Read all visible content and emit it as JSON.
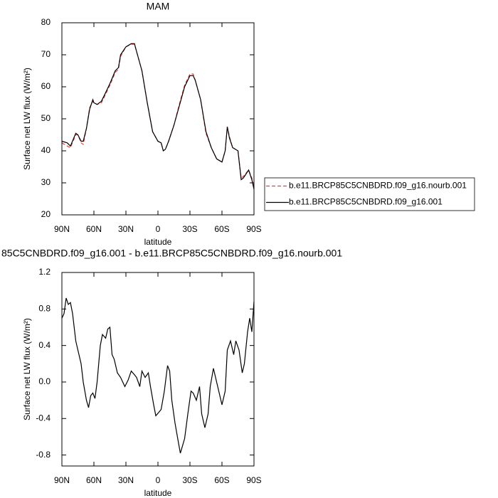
{
  "chart_data": [
    {
      "type": "line",
      "title": "MAM",
      "xlabel": "latitude",
      "ylabel": "Surface net LW flux (W/m²)",
      "x": [
        90,
        85,
        82,
        77,
        75,
        72,
        70,
        67,
        64,
        61,
        60,
        57,
        53,
        50,
        45,
        40,
        37,
        35,
        30,
        25,
        22,
        20,
        15,
        10,
        5,
        0,
        -3,
        -5,
        -7,
        -10,
        -15,
        -20,
        -25,
        -30,
        -33,
        -35,
        -40,
        -45,
        -50,
        -55,
        -60,
        -63,
        -65,
        -67,
        -70,
        -75,
        -78,
        -80,
        -85,
        -88,
        -90
      ],
      "series": [
        {
          "name": "b.e11.BRCP85C5CNBDRD.f09_g16.nourb.001",
          "color": "#e8413c",
          "dash": true,
          "values": [
            42.5,
            41.5,
            41,
            45,
            45,
            42.5,
            42,
            47,
            53.5,
            55.5,
            55,
            54.5,
            55,
            57,
            60.5,
            64.5,
            65.5,
            69.5,
            72.5,
            73.3,
            73.3,
            71,
            65,
            55,
            46,
            43,
            42.5,
            40,
            40.5,
            43,
            48,
            54.5,
            60.5,
            64,
            64,
            62,
            56,
            45.5,
            41,
            37.5,
            36.5,
            40,
            47.5,
            44.5,
            41,
            40,
            31.5,
            32,
            34,
            31.5,
            28.5
          ]
        },
        {
          "name": "b.e11.BRCP85C5CNBDRD.f09_g16.001",
          "color": "#000000",
          "dash": false,
          "values": [
            43,
            42.5,
            41.5,
            45.5,
            45,
            43,
            43,
            47,
            53,
            56,
            55,
            54.5,
            55.5,
            57.5,
            61,
            65,
            66,
            70,
            72.5,
            73.5,
            73.5,
            71,
            65,
            55,
            46,
            43,
            42.5,
            40,
            40.5,
            43,
            48,
            54,
            60,
            63.5,
            63.5,
            62,
            56,
            46,
            41,
            37.5,
            36.5,
            40,
            47.5,
            44,
            41,
            40,
            31,
            31.5,
            34,
            31,
            28
          ]
        }
      ],
      "xlim": [
        90,
        -90
      ],
      "xticks": [
        {
          "value": 90,
          "label": "90N"
        },
        {
          "value": 60,
          "label": "60N"
        },
        {
          "value": 30,
          "label": "30N"
        },
        0,
        {
          "value": -30,
          "label": "30S"
        },
        {
          "value": -60,
          "label": "60S"
        },
        {
          "value": -90,
          "label": "90S"
        }
      ],
      "ylim": [
        20,
        80
      ],
      "yticks": [
        20,
        30,
        40,
        50,
        60,
        70,
        80
      ],
      "legend": "right"
    },
    {
      "type": "line",
      "title": "85C5CNBDRD.f09_g16.001 - b.e11.BRCP85C5CNBDRD.f09_g16.nourb.001",
      "xlabel": "latitude",
      "ylabel": "Surface net LW flux (W/m²)",
      "x": [
        90,
        88,
        86,
        84,
        82,
        80,
        77,
        75,
        72,
        70,
        67,
        65,
        63,
        61,
        59,
        57,
        54,
        52,
        49,
        47,
        45,
        43,
        41,
        38,
        35,
        31,
        28,
        25,
        22,
        20,
        17,
        15,
        12,
        9,
        7,
        4,
        2,
        -1,
        -3,
        -6,
        -9,
        -11,
        -13,
        -16,
        -19,
        -21,
        -23,
        -25,
        -28,
        -31,
        -33,
        -36,
        -39,
        -41,
        -44,
        -47,
        -49,
        -52,
        -55,
        -57,
        -60,
        -63,
        -65,
        -68,
        -71,
        -73,
        -76,
        -79,
        -81,
        -84,
        -86,
        -88,
        -90
      ],
      "series": [
        {
          "name": null,
          "color": "#000000",
          "dash": false,
          "values": [
            0.7,
            0.75,
            0.92,
            0.85,
            0.87,
            0.75,
            0.45,
            0.35,
            0.2,
            0.0,
            -0.2,
            -0.28,
            -0.15,
            -0.12,
            -0.18,
            0.0,
            0.4,
            0.52,
            0.48,
            0.58,
            0.6,
            0.3,
            0.25,
            0.1,
            0.05,
            -0.05,
            0.02,
            0.12,
            0.08,
            0.05,
            -0.05,
            0.12,
            0.05,
            0.1,
            -0.05,
            -0.25,
            -0.37,
            -0.33,
            -0.3,
            -0.1,
            0.18,
            0.12,
            -0.2,
            -0.45,
            -0.65,
            -0.78,
            -0.7,
            -0.62,
            -0.35,
            -0.1,
            -0.12,
            -0.2,
            -0.05,
            -0.35,
            -0.5,
            -0.35,
            -0.05,
            0.15,
            0.0,
            -0.1,
            -0.25,
            -0.1,
            0.35,
            0.45,
            0.3,
            0.45,
            0.35,
            0.1,
            0.2,
            0.55,
            0.7,
            0.55,
            0.88
          ]
        }
      ],
      "xlim": [
        90,
        -90
      ],
      "xticks": [
        {
          "value": 90,
          "label": "90N"
        },
        {
          "value": 60,
          "label": "60N"
        },
        {
          "value": 30,
          "label": "30N"
        },
        0,
        {
          "value": -30,
          "label": "30S"
        },
        {
          "value": -60,
          "label": "60S"
        },
        {
          "value": -90,
          "label": "90S"
        }
      ],
      "ylim": [
        -0.92,
        1.2
      ],
      "yticks": [
        {
          "value": -0.8,
          "label": "-0.8"
        },
        {
          "value": -0.4,
          "label": "-0.4"
        },
        {
          "value": 0,
          "label": "0.0"
        },
        0.4,
        0.8,
        1.2
      ]
    }
  ]
}
